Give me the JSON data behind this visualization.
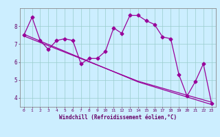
{
  "title": "",
  "xlabel": "Windchill (Refroidissement éolien,°C)",
  "ylabel": "",
  "background_color": "#cceeff",
  "plot_bg_color": "#cceeff",
  "line_color": "#990099",
  "x_values": [
    0,
    1,
    2,
    3,
    4,
    5,
    6,
    7,
    8,
    9,
    10,
    11,
    12,
    13,
    14,
    15,
    16,
    17,
    18,
    19,
    20,
    21,
    22,
    23
  ],
  "y_main": [
    7.5,
    8.5,
    7.2,
    6.7,
    7.2,
    7.3,
    7.2,
    5.9,
    6.2,
    6.2,
    6.6,
    7.9,
    7.6,
    8.6,
    8.6,
    8.3,
    8.1,
    7.4,
    7.3,
    5.3,
    4.1,
    4.9,
    5.9,
    3.7
  ],
  "y_trend1": [
    7.55,
    7.36,
    7.17,
    6.98,
    6.79,
    6.6,
    6.41,
    6.22,
    6.03,
    5.84,
    5.65,
    5.46,
    5.27,
    5.08,
    4.89,
    4.75,
    4.61,
    4.47,
    4.33,
    4.19,
    4.05,
    3.91,
    3.77,
    3.63
  ],
  "y_trend2": [
    7.45,
    7.27,
    7.09,
    6.91,
    6.73,
    6.55,
    6.37,
    6.19,
    6.01,
    5.83,
    5.65,
    5.47,
    5.29,
    5.11,
    4.93,
    4.8,
    4.67,
    4.54,
    4.41,
    4.28,
    4.15,
    4.02,
    3.89,
    3.76
  ],
  "ylim": [
    3.5,
    9.0
  ],
  "yticks": [
    4,
    5,
    6,
    7,
    8
  ],
  "xticks": [
    0,
    1,
    2,
    3,
    4,
    5,
    6,
    7,
    8,
    9,
    10,
    11,
    12,
    13,
    14,
    15,
    16,
    17,
    18,
    19,
    20,
    21,
    22,
    23
  ],
  "grid_color": "#99cccc",
  "axis_color": "#888888",
  "tick_color": "#660066",
  "label_color": "#660066",
  "marker": "D",
  "markersize": 2.5,
  "linewidth": 0.9
}
